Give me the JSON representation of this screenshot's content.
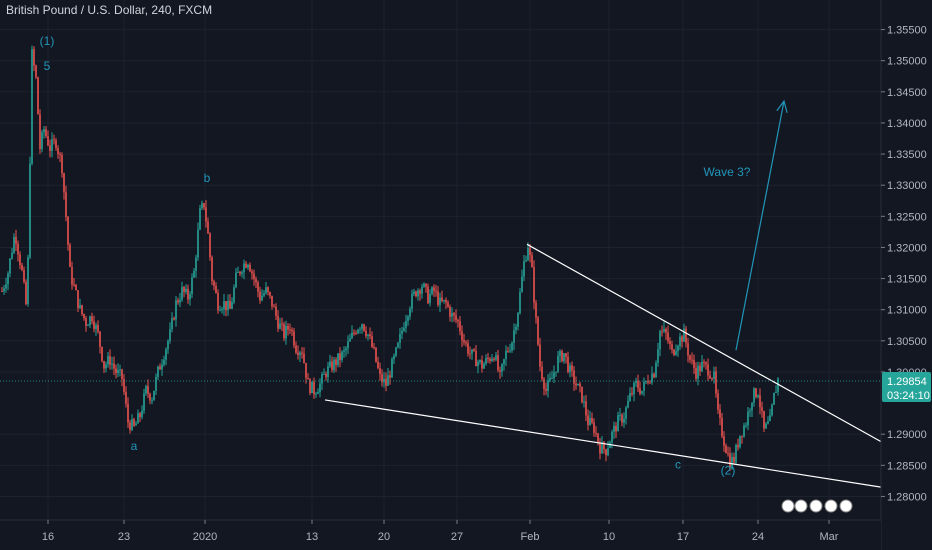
{
  "header": {
    "title": "British Pound / U.S. Dollar, 240, FXCM"
  },
  "colors": {
    "background": "#131722",
    "grid": "#1e222d",
    "up": "#26a69a",
    "down": "#ef5350",
    "trendline": "#ffffff",
    "annotation": "#2196b8",
    "price_badge": "#26a69a"
  },
  "price_badge": {
    "price": "1.29854",
    "countdown": "03:24:10"
  },
  "chart_data": {
    "type": "candlestick",
    "title": "British Pound / U.S. Dollar, 240, FXCM",
    "ylim": [
      1.2775,
      1.3575
    ],
    "xlim": [
      0,
      932
    ],
    "y_ticks": [
      {
        "value": 1.355,
        "label": "1.35500"
      },
      {
        "value": 1.35,
        "label": "1.35000"
      },
      {
        "value": 1.345,
        "label": "1.34500"
      },
      {
        "value": 1.34,
        "label": "1.34000"
      },
      {
        "value": 1.335,
        "label": "1.33500"
      },
      {
        "value": 1.33,
        "label": "1.33000"
      },
      {
        "value": 1.325,
        "label": "1.32500"
      },
      {
        "value": 1.32,
        "label": "1.32000"
      },
      {
        "value": 1.315,
        "label": "1.31500"
      },
      {
        "value": 1.31,
        "label": "1.31000"
      },
      {
        "value": 1.305,
        "label": "1.30500"
      },
      {
        "value": 1.3,
        "label": "1.30000"
      },
      {
        "value": 1.29,
        "label": "1.29000"
      },
      {
        "value": 1.285,
        "label": "1.28500"
      },
      {
        "value": 1.28,
        "label": "1.28000"
      }
    ],
    "x_ticks": [
      {
        "label": "16",
        "x": 48
      },
      {
        "label": "23",
        "x": 124
      },
      {
        "label": "2020",
        "x": 205
      },
      {
        "label": "13",
        "x": 312
      },
      {
        "label": "20",
        "x": 384
      },
      {
        "label": "27",
        "x": 457
      },
      {
        "label": "Feb",
        "x": 530
      },
      {
        "label": "10",
        "x": 609
      },
      {
        "label": "17",
        "x": 683
      },
      {
        "label": "24",
        "x": 758
      },
      {
        "label": "Mar",
        "x": 829
      }
    ],
    "path": [
      [
        2,
        1.313
      ],
      [
        8,
        1.316
      ],
      [
        15,
        1.3225
      ],
      [
        22,
        1.316
      ],
      [
        27,
        1.3095
      ],
      [
        32,
        1.351
      ],
      [
        36,
        1.347
      ],
      [
        40,
        1.336
      ],
      [
        44,
        1.339
      ],
      [
        50,
        1.336
      ],
      [
        56,
        1.337
      ],
      [
        62,
        1.333
      ],
      [
        66,
        1.325
      ],
      [
        70,
        1.316
      ],
      [
        75,
        1.313
      ],
      [
        80,
        1.31
      ],
      [
        86,
        1.308
      ],
      [
        92,
        1.309
      ],
      [
        98,
        1.306
      ],
      [
        104,
        1.301
      ],
      [
        110,
        1.302
      ],
      [
        116,
        1.3
      ],
      [
        122,
        1.299
      ],
      [
        128,
        1.292
      ],
      [
        134,
        1.291
      ],
      [
        140,
        1.293
      ],
      [
        146,
        1.297
      ],
      [
        152,
        1.296
      ],
      [
        158,
        1.3
      ],
      [
        164,
        1.303
      ],
      [
        170,
        1.306
      ],
      [
        176,
        1.311
      ],
      [
        182,
        1.313
      ],
      [
        188,
        1.312
      ],
      [
        194,
        1.316
      ],
      [
        200,
        1.3255
      ],
      [
        204,
        1.327
      ],
      [
        208,
        1.322
      ],
      [
        212,
        1.315
      ],
      [
        218,
        1.311
      ],
      [
        224,
        1.311
      ],
      [
        230,
        1.31
      ],
      [
        236,
        1.315
      ],
      [
        242,
        1.317
      ],
      [
        248,
        1.318
      ],
      [
        254,
        1.315
      ],
      [
        260,
        1.312
      ],
      [
        266,
        1.313
      ],
      [
        272,
        1.311
      ],
      [
        278,
        1.308
      ],
      [
        284,
        1.306
      ],
      [
        290,
        1.3075
      ],
      [
        296,
        1.304
      ],
      [
        302,
        1.3035
      ],
      [
        308,
        1.298
      ],
      [
        314,
        1.297
      ],
      [
        320,
        1.298
      ],
      [
        326,
        1.3
      ],
      [
        332,
        1.301
      ],
      [
        338,
        1.302
      ],
      [
        344,
        1.303
      ],
      [
        350,
        1.305
      ],
      [
        356,
        1.307
      ],
      [
        362,
        1.308
      ],
      [
        368,
        1.306
      ],
      [
        374,
        1.303
      ],
      [
        380,
        1.299
      ],
      [
        386,
        1.298
      ],
      [
        392,
        1.301
      ],
      [
        398,
        1.304
      ],
      [
        404,
        1.308
      ],
      [
        410,
        1.311
      ],
      [
        416,
        1.313
      ],
      [
        422,
        1.314
      ],
      [
        428,
        1.312
      ],
      [
        434,
        1.313
      ],
      [
        440,
        1.311
      ],
      [
        446,
        1.311
      ],
      [
        452,
        1.309
      ],
      [
        458,
        1.308
      ],
      [
        464,
        1.305
      ],
      [
        470,
        1.303
      ],
      [
        476,
        1.302
      ],
      [
        482,
        1.301
      ],
      [
        488,
        1.302
      ],
      [
        494,
        1.303
      ],
      [
        500,
        1.299
      ],
      [
        506,
        1.303
      ],
      [
        512,
        1.305
      ],
      [
        518,
        1.31
      ],
      [
        524,
        1.3175
      ],
      [
        528,
        1.3205
      ],
      [
        532,
        1.316
      ],
      [
        536,
        1.308
      ],
      [
        540,
        1.301
      ],
      [
        546,
        1.297
      ],
      [
        552,
        1.299
      ],
      [
        558,
        1.302
      ],
      [
        564,
        1.303
      ],
      [
        570,
        1.3
      ],
      [
        576,
        1.298
      ],
      [
        582,
        1.296
      ],
      [
        588,
        1.292
      ],
      [
        594,
        1.291
      ],
      [
        600,
        1.288
      ],
      [
        606,
        1.2875
      ],
      [
        612,
        1.29
      ],
      [
        618,
        1.292
      ],
      [
        624,
        1.293
      ],
      [
        630,
        1.296
      ],
      [
        636,
        1.298
      ],
      [
        642,
        1.297
      ],
      [
        648,
        1.299
      ],
      [
        654,
        1.3
      ],
      [
        660,
        1.3065
      ],
      [
        666,
        1.306
      ],
      [
        672,
        1.303
      ],
      [
        678,
        1.305
      ],
      [
        684,
        1.306
      ],
      [
        690,
        1.302
      ],
      [
        696,
        1.3
      ],
      [
        702,
        1.301
      ],
      [
        708,
        1.3005
      ],
      [
        714,
        1.299
      ],
      [
        718,
        1.293
      ],
      [
        724,
        1.289
      ],
      [
        730,
        1.2855
      ],
      [
        734,
        1.286
      ],
      [
        740,
        1.29
      ],
      [
        746,
        1.292
      ],
      [
        752,
        1.296
      ],
      [
        758,
        1.297
      ],
      [
        764,
        1.2905
      ],
      [
        770,
        1.292
      ],
      [
        774,
        1.296
      ],
      [
        778,
        1.2988
      ]
    ],
    "trendlines": [
      {
        "x1": 527,
        "y1": 1.3205,
        "x2": 881,
        "y2": 1.2888
      },
      {
        "x1": 325,
        "y1": 1.2955,
        "x2": 881,
        "y2": 1.2815
      }
    ],
    "arrow": {
      "x1": 736,
      "y1": 1.3035,
      "x2": 784,
      "y2": 1.3435
    },
    "annotations": [
      {
        "text": "(1)",
        "x": 47,
        "y": 1.3525
      },
      {
        "text": "5",
        "x": 47,
        "y": 1.3485
      },
      {
        "text": "b",
        "x": 207,
        "y": 1.3305
      },
      {
        "text": "a",
        "x": 134,
        "y": 1.2875
      },
      {
        "text": "c",
        "x": 678,
        "y": 1.2845
      },
      {
        "text": "(2)",
        "x": 728,
        "y": 1.2835
      },
      {
        "text": "Wave 3?",
        "x": 727,
        "y": 1.3315
      }
    ]
  }
}
